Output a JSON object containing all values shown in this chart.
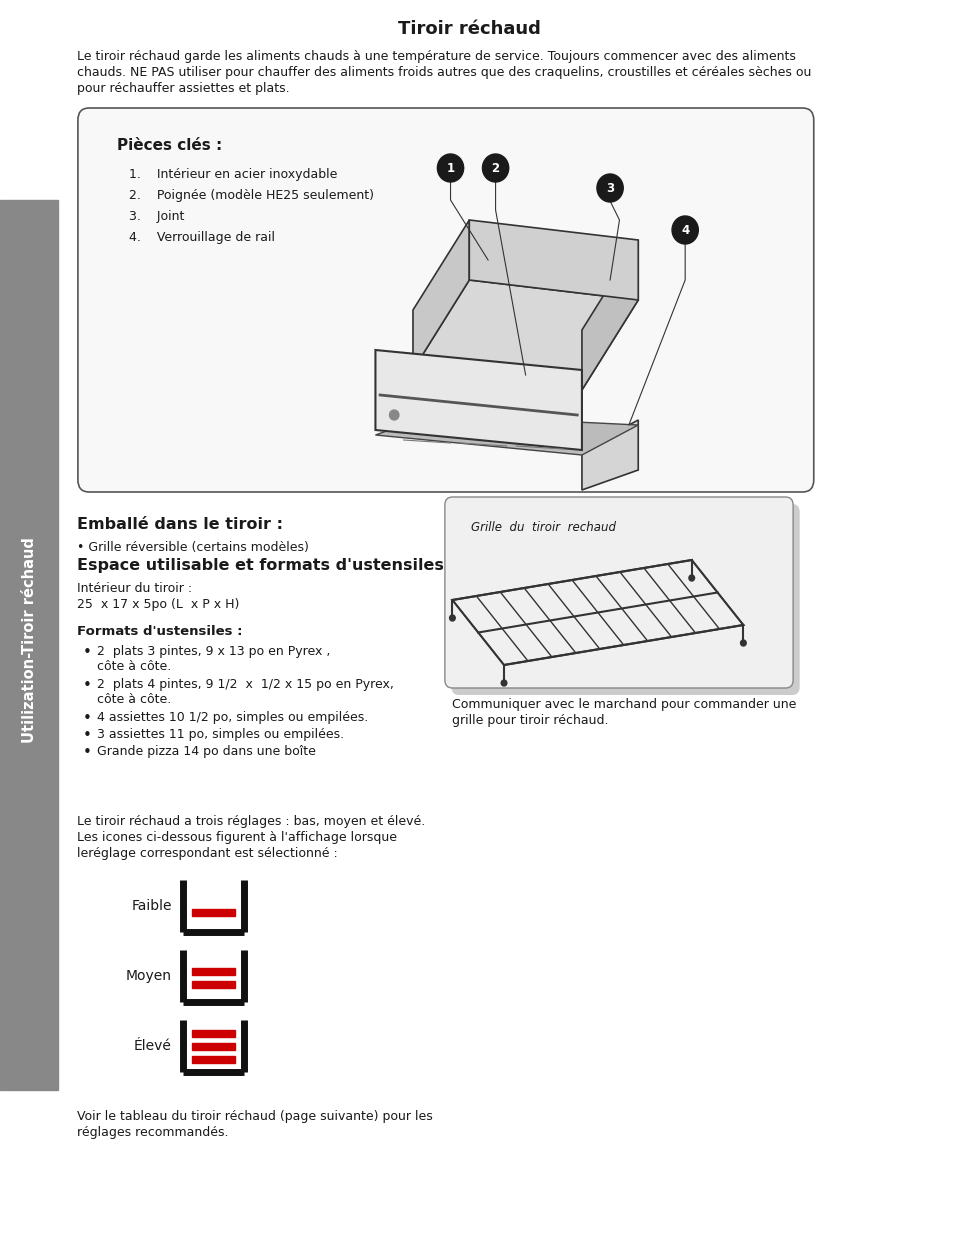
{
  "title": "Tiroir réchaud",
  "bg_color": "#ffffff",
  "sidebar_color": "#888888",
  "sidebar_text": "Utilization-Tiroir réchaud",
  "intro_text": "Le tiroir réchaud garde les aliments chauds à une température de service. Toujours commencer avec des aliments\nchauds. NE PAS utiliser pour chauffer des aliments froids autres que des craquelins, croustilles et céréales sèches ou\npour réchauffer assiettes et plats.",
  "box_title": "Pièces clés :",
  "box_items": [
    "Intérieur en acier inoxydable",
    "Poignée (modèle HE25 seulement)",
    "Joint",
    "Verrouillage de rail"
  ],
  "section2_title": "Emballé dans le tiroir :",
  "section2_text": "• Grille réversible (certains modèles)",
  "section3_title": "Espace utilisable et formats d'ustensiles",
  "section3_sub": "Intérieur du tiroir :\n25  x 17 x 5po (L  x P x H)",
  "formats_title": "Formats d'ustensiles :",
  "formats_items": [
    "2  plats 3 pintes, 9 x 13 po en Pyrex ,\ncôte à côte.",
    "2  plats 4 pintes, 9 1/2  x  1/2 x 15 po en Pyrex,\ncôte à côte.",
    "4 assiettes 10 1/2 po, simples ou empilées.",
    "3 assiettes 11 po, simples ou empilées.",
    "Grande pizza 14 po dans une boîte"
  ],
  "grille_caption": "Grille  du  tiroir  rechaud",
  "grille_note": "Communiquer avec le marchand pour commander une\ngrille pour tiroir réchaud.",
  "heat_intro": "Le tiroir réchaud a trois réglages : bas, moyen et élevé.\nLes icones ci-dessous figurent à l'affichage lorsque\nleréglage correspondant est sélectionné :",
  "heat_labels": [
    "Faible",
    "Moyen",
    "Élevé"
  ],
  "footer_text": "Voir le tableau du tiroir réchaud (page suivante) pour les\nréglages recommandés.",
  "red_color": "#cc0000",
  "black_color": "#1a1a1a"
}
